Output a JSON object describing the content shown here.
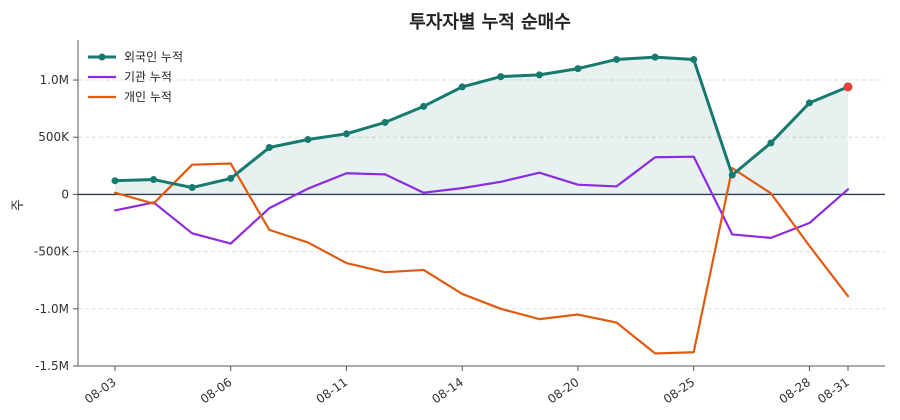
{
  "chart_data": {
    "type": "line",
    "title": "투자자별 누적 순매수",
    "xlabel": "",
    "ylabel": "주",
    "ylim": [
      -1500000,
      1350000
    ],
    "y_ticks": [
      -1500000,
      -1000000,
      -500000,
      0,
      500000,
      1000000
    ],
    "y_tick_labels": [
      "-1.5M",
      "-1.0M",
      "-500K",
      "0",
      "500K",
      "1.0M"
    ],
    "x_tick_labels": [
      "08-03",
      "08-06",
      "08-11",
      "08-14",
      "08-20",
      "08-25",
      "08-28",
      "08-31"
    ],
    "x_tick_indices": [
      0,
      3,
      6,
      9,
      12,
      15,
      18,
      19
    ],
    "grid": "horizontal dashed",
    "legend_position": "top-left",
    "zero_line": true,
    "colors": {
      "foreign": "#177a6e",
      "institution": "#8b2be2",
      "individual": "#e05a10",
      "last_point": "#e84040",
      "fill": "#177a6e",
      "zero_line": "#2d3b55"
    },
    "series": [
      {
        "name": "외국인 누적",
        "key": "foreign",
        "values": [
          120000,
          130000,
          60000,
          140000,
          410000,
          480000,
          530000,
          630000,
          770000,
          940000,
          1030000,
          1045000,
          1100000,
          1180000,
          1200000,
          1180000,
          170000,
          450000,
          800000,
          940000
        ]
      },
      {
        "name": "기관 누적",
        "key": "institution",
        "values": [
          -140000,
          -70000,
          -340000,
          -430000,
          -120000,
          50000,
          185000,
          175000,
          15000,
          55000,
          110000,
          190000,
          85000,
          70000,
          325000,
          330000,
          -350000,
          -380000,
          -250000,
          45000
        ]
      },
      {
        "name": "개인 누적",
        "key": "individual",
        "values": [
          15000,
          -80000,
          260000,
          270000,
          -310000,
          -420000,
          -600000,
          -680000,
          -660000,
          -870000,
          -1000000,
          -1090000,
          -1050000,
          -1120000,
          -1390000,
          -1380000,
          230000,
          10000,
          -450000,
          -890000
        ]
      }
    ]
  }
}
